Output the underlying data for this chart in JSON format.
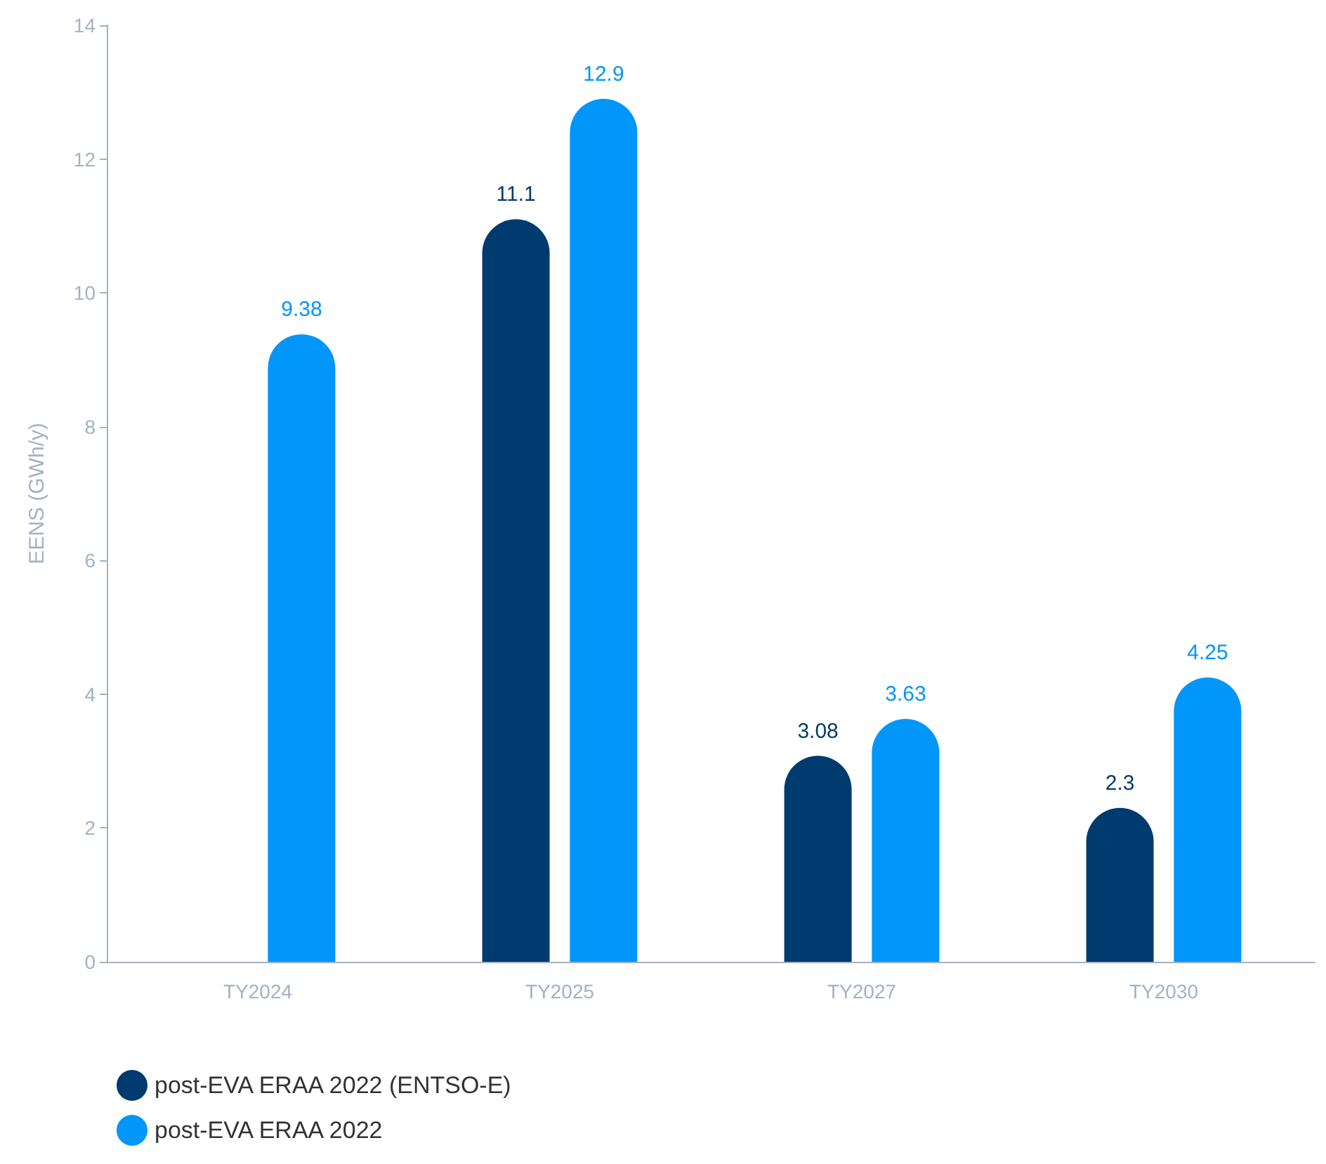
{
  "chart_data": {
    "type": "bar",
    "ylabel": "EENS (GWh/y)",
    "categories": [
      "TY2024",
      "TY2025",
      "TY2027",
      "TY2030"
    ],
    "series": [
      {
        "name": "post-EVA ERAA 2022 (ENTSO-E)",
        "color": "#003b6f",
        "values": [
          null,
          11.1,
          3.08,
          2.3
        ]
      },
      {
        "name": "post-EVA ERAA 2022",
        "color": "#0096fa",
        "values": [
          9.38,
          12.9,
          3.63,
          4.25
        ]
      }
    ],
    "ylim": [
      0,
      14
    ],
    "yticks": [
      0,
      2,
      4,
      6,
      8,
      10,
      12,
      14
    ],
    "grid": false,
    "legend": "bottom left",
    "data_labels": true
  }
}
